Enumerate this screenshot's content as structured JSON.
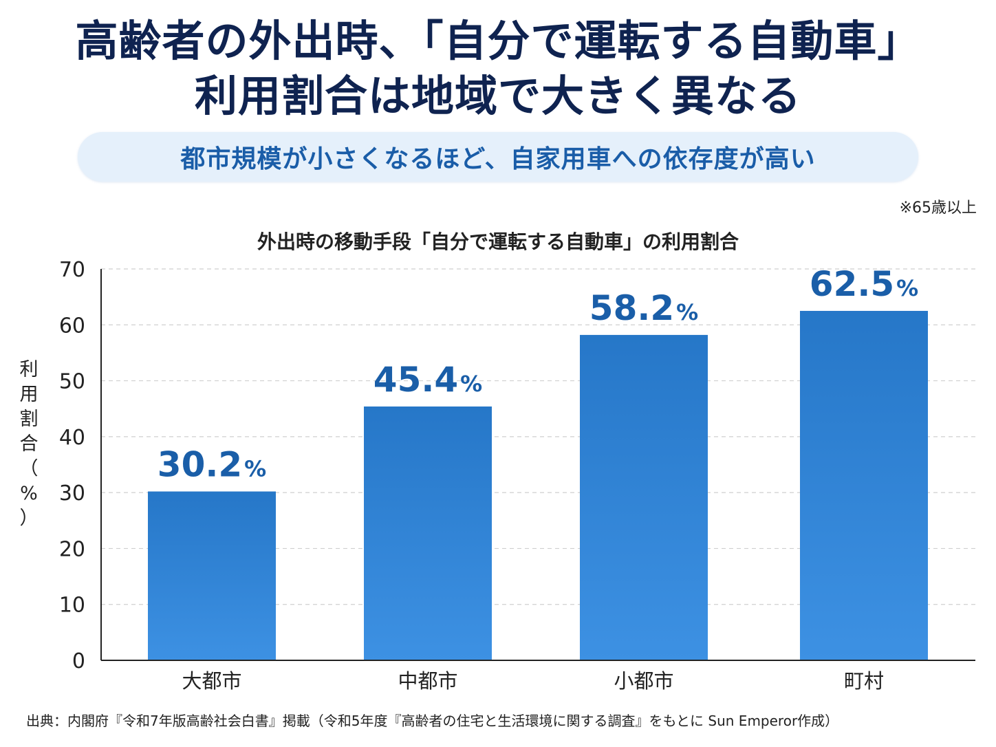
{
  "headline": {
    "line1": "高齢者の外出時、「自分で運転する自動車」",
    "line2": "利用割合は地域で大きく異なる"
  },
  "subtitle": "都市規模が小さくなるほど、自家用車への依存度が高い",
  "note": "※65歳以上",
  "chart_data": {
    "type": "bar",
    "title": "外出時の移動手段「自分で運転する自動車」の利用割合",
    "ylabel": "利用割合（%）",
    "ylabel_chars": [
      "利",
      "用",
      "割",
      "合",
      "（",
      "%",
      "）"
    ],
    "xlabel": "",
    "categories": [
      "大都市",
      "中都市",
      "小都市",
      "町村"
    ],
    "values": [
      30.2,
      45.4,
      58.2,
      62.5
    ],
    "value_unit": "%",
    "ylim": [
      0,
      70
    ],
    "yticks": [
      0,
      10,
      20,
      30,
      40,
      50,
      60,
      70
    ],
    "grid": true,
    "legend": "none",
    "colors": {
      "bar_top": "#2677c8",
      "bar_bottom": "#3d91e3",
      "value_label": "#1a5ea8",
      "grid": "#cfcfcf"
    }
  },
  "source": "出典：内閣府『令和7年版高齢社会白書』掲載（令和5年度『高齢者の住宅と生活環境に関する調査』をもとに Sun Emperor作成）"
}
